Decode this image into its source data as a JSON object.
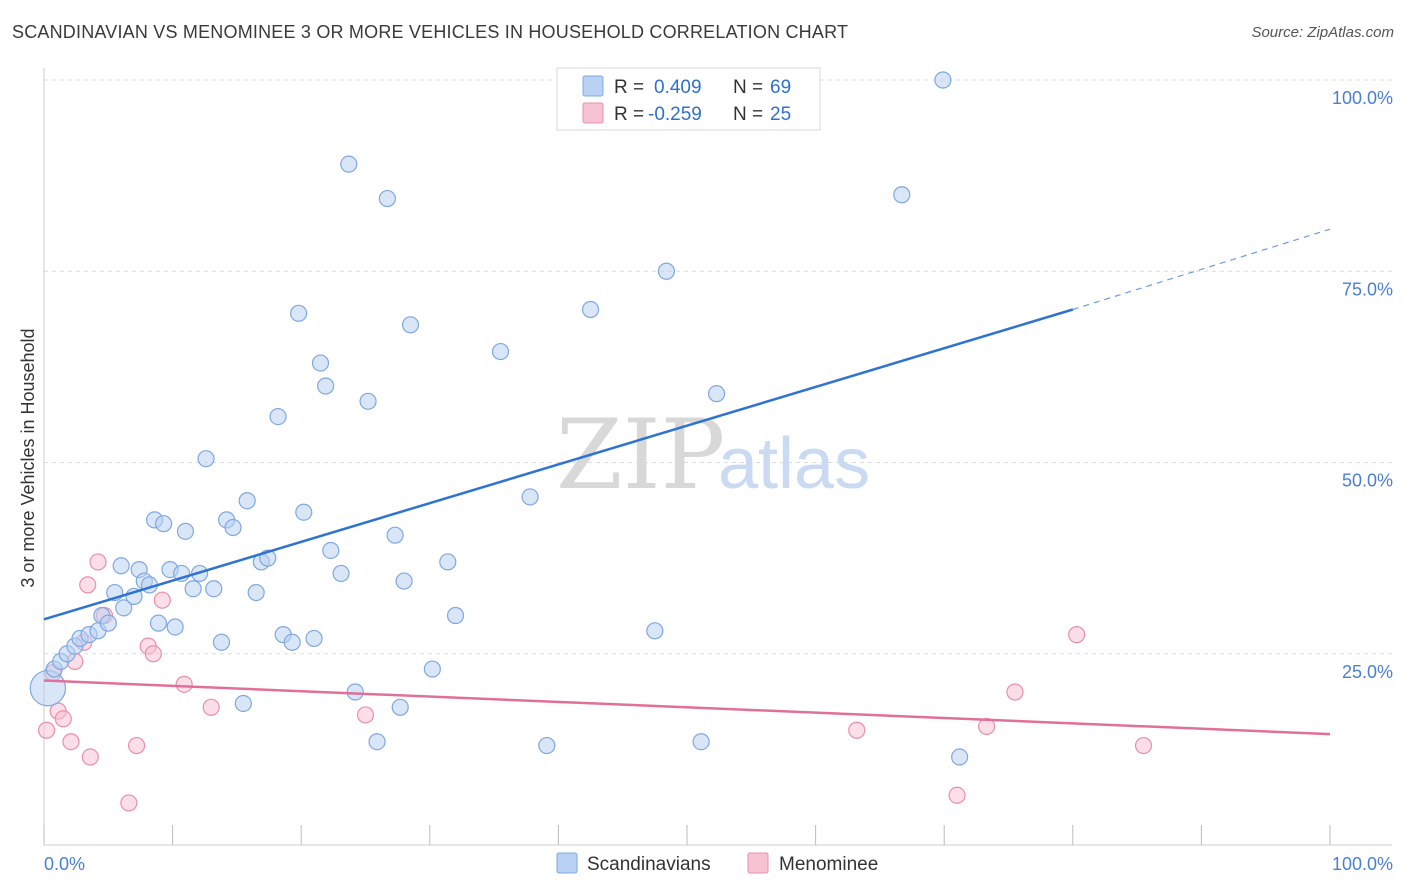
{
  "title": "SCANDINAVIAN VS MENOMINEE 3 OR MORE VEHICLES IN HOUSEHOLD CORRELATION CHART",
  "source": "Source: ZipAtlas.com",
  "watermark": {
    "part1": "ZIP",
    "part2": "atlas"
  },
  "legend": {
    "items": [
      {
        "r_label": "R =",
        "r_value": "0.409",
        "n_label": "N =",
        "n_value": "69"
      },
      {
        "r_label": "R =",
        "r_value": "-0.259",
        "n_label": "N =",
        "n_value": "25"
      }
    ]
  },
  "bottom_legend": [
    "Scandinavians",
    "Menominee"
  ],
  "colors": {
    "scand_fill": "#b9d2f3",
    "scand_stroke": "#7fa8e0",
    "scand_line": "#2f73d2",
    "menom_fill": "#f7c3d3",
    "menom_stroke": "#e98fac",
    "menom_line": "#e0709a",
    "grid": "#dcdcdc",
    "axis_label": "#4a7fd0"
  },
  "chart_data": {
    "type": "scatter",
    "title": "SCANDINAVIAN VS MENOMINEE 3 OR MORE VEHICLES IN HOUSEHOLD CORRELATION CHART",
    "xlabel": "",
    "ylabel": "3 or more Vehicles in Household",
    "xlim": [
      0,
      100
    ],
    "ylim": [
      0,
      100
    ],
    "x_tick_labels": [
      "0.0%",
      "100.0%"
    ],
    "y_ticks": [
      25,
      50,
      75,
      100
    ],
    "y_tick_labels": [
      "25.0%",
      "50.0%",
      "75.0%",
      "100.0%"
    ],
    "series": [
      {
        "name": "Scandinavians",
        "r": 0.409,
        "n": 69,
        "trend": {
          "x0": 0,
          "y0": 29.5,
          "x1": 80,
          "y1": 70,
          "dashed_to_x": 100,
          "dashed_to_y": 80.5
        },
        "points": [
          [
            0.3,
            20.5,
            2.2
          ],
          [
            0.8,
            23,
            1
          ],
          [
            1.3,
            24,
            1
          ],
          [
            1.8,
            25,
            1
          ],
          [
            2.4,
            26,
            1
          ],
          [
            2.8,
            27,
            1
          ],
          [
            3.5,
            27.5,
            1
          ],
          [
            4.2,
            28,
            1
          ],
          [
            4.5,
            30,
            1
          ],
          [
            5,
            29,
            1
          ],
          [
            5.5,
            33,
            1
          ],
          [
            6,
            36.5,
            1
          ],
          [
            6.2,
            31,
            1
          ],
          [
            7,
            32.5,
            1
          ],
          [
            7.4,
            36,
            1
          ],
          [
            7.8,
            34.5,
            1
          ],
          [
            8.2,
            34,
            1
          ],
          [
            8.6,
            42.5,
            1
          ],
          [
            8.9,
            29,
            1
          ],
          [
            9.3,
            42,
            1
          ],
          [
            9.8,
            36,
            1
          ],
          [
            10.2,
            28.5,
            1
          ],
          [
            10.7,
            35.5,
            1
          ],
          [
            11,
            41,
            1
          ],
          [
            11.6,
            33.5,
            1
          ],
          [
            12.1,
            35.5,
            1
          ],
          [
            12.6,
            50.5,
            1
          ],
          [
            13.2,
            33.5,
            1
          ],
          [
            13.8,
            26.5,
            1
          ],
          [
            14.2,
            42.5,
            1
          ],
          [
            14.7,
            41.5,
            1
          ],
          [
            15.5,
            18.5,
            1
          ],
          [
            15.8,
            45,
            1
          ],
          [
            16.5,
            33,
            1
          ],
          [
            16.9,
            37,
            1
          ],
          [
            17.4,
            37.5,
            1
          ],
          [
            18.2,
            56,
            1
          ],
          [
            18.6,
            27.5,
            1
          ],
          [
            19.3,
            26.5,
            1
          ],
          [
            19.8,
            69.5,
            1
          ],
          [
            20.2,
            43.5,
            1
          ],
          [
            21,
            27,
            1
          ],
          [
            21.5,
            63,
            1
          ],
          [
            21.9,
            60,
            1
          ],
          [
            22.3,
            38.5,
            1
          ],
          [
            23.1,
            35.5,
            1
          ],
          [
            23.7,
            89,
            1
          ],
          [
            24.2,
            20,
            1
          ],
          [
            25.2,
            58,
            1
          ],
          [
            25.9,
            13.5,
            1
          ],
          [
            26.7,
            84.5,
            1
          ],
          [
            27.3,
            40.5,
            1
          ],
          [
            27.7,
            18,
            1
          ],
          [
            28,
            34.5,
            1
          ],
          [
            28.5,
            68,
            1
          ],
          [
            30.2,
            23,
            1
          ],
          [
            31.4,
            37,
            1
          ],
          [
            32,
            30,
            1
          ],
          [
            35.5,
            64.5,
            1
          ],
          [
            37.8,
            45.5,
            1
          ],
          [
            39.1,
            13,
            1
          ],
          [
            42.5,
            70,
            1
          ],
          [
            47.5,
            28,
            1
          ],
          [
            48.4,
            75,
            1
          ],
          [
            51.1,
            13.5,
            1
          ],
          [
            52.3,
            59,
            1
          ],
          [
            66.7,
            85,
            1
          ],
          [
            69.9,
            100,
            1
          ],
          [
            71.2,
            11.5,
            1
          ]
        ]
      },
      {
        "name": "Menominee",
        "r": -0.259,
        "n": 25,
        "trend": {
          "x0": 0,
          "y0": 21.5,
          "x1": 100,
          "y1": 14.5
        },
        "points": [
          [
            0.2,
            15,
            1
          ],
          [
            0.7,
            22.5,
            1
          ],
          [
            1.1,
            17.5,
            1
          ],
          [
            1.5,
            16.5,
            1
          ],
          [
            2.1,
            13.5,
            1
          ],
          [
            2.4,
            24,
            1
          ],
          [
            3.1,
            26.5,
            1
          ],
          [
            3.4,
            34,
            1
          ],
          [
            3.6,
            11.5,
            1
          ],
          [
            4.2,
            37,
            1
          ],
          [
            4.7,
            30,
            1
          ],
          [
            6.6,
            5.5,
            1
          ],
          [
            7.2,
            13,
            1
          ],
          [
            8.1,
            26,
            1
          ],
          [
            8.5,
            25,
            1
          ],
          [
            9.2,
            32,
            1
          ],
          [
            10.9,
            21,
            1
          ],
          [
            13,
            18,
            1
          ],
          [
            25,
            17,
            1
          ],
          [
            63.2,
            15,
            1
          ],
          [
            71,
            6.5,
            1
          ],
          [
            73.3,
            15.5,
            1
          ],
          [
            75.5,
            20,
            1
          ],
          [
            80.3,
            27.5,
            1
          ],
          [
            85.5,
            13,
            1
          ]
        ]
      }
    ]
  }
}
